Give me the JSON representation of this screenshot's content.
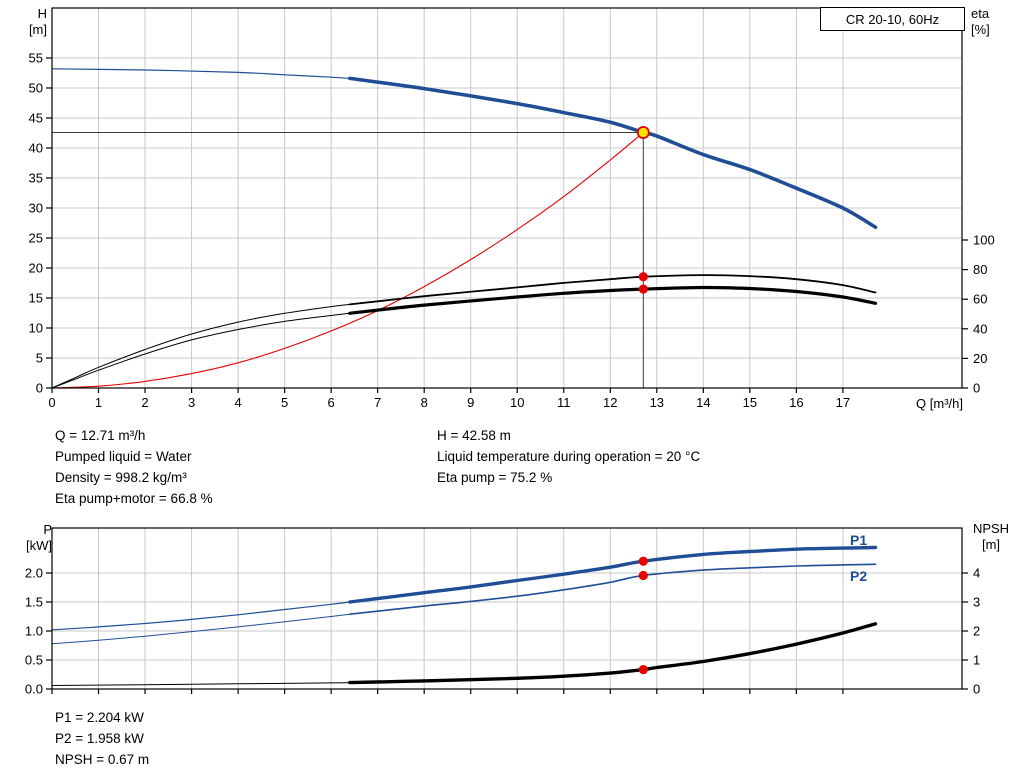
{
  "colors": {
    "blue": "#1f4e96",
    "black": "#000000",
    "red": "#e60000",
    "grid": "#c8c8c8",
    "axis": "#000000",
    "duty_line": "#3a3a3a",
    "duty_fill": "#ffe400",
    "dot_red": "#e60000"
  },
  "chart_data": [
    {
      "type": "line",
      "title": "CR 20-10, 60Hz",
      "xlabel": "Q [m³/h]",
      "x_ticks": [
        0,
        1,
        2,
        3,
        4,
        5,
        6,
        7,
        8,
        9,
        10,
        11,
        12,
        13,
        14,
        15,
        16,
        17
      ],
      "xlim": [
        0,
        19.56
      ],
      "show_x_labels": true,
      "left_axis": {
        "label_lines": [
          "H",
          "[m]"
        ],
        "ticks": [
          0,
          5,
          10,
          15,
          20,
          25,
          30,
          35,
          40,
          45,
          50,
          55
        ],
        "lim": [
          0,
          63.33
        ],
        "decimals": 0
      },
      "right_axis": {
        "label_lines": [
          "eta",
          "[%]"
        ],
        "ticks": [
          0,
          20,
          40,
          60,
          80,
          100
        ],
        "lim": [
          0,
          256.76
        ],
        "decimals": 0
      },
      "series": [
        {
          "name": "head-curve",
          "label": "H",
          "color": "blue",
          "axis": "left",
          "thin_until": 6.4,
          "width_thin": 1.2,
          "width_thick": 3.6,
          "points": [
            [
              0,
              53.2
            ],
            [
              2,
              53.0
            ],
            [
              4,
              52.6
            ],
            [
              5,
              52.2
            ],
            [
              6,
              51.8
            ],
            [
              6.4,
              51.6
            ],
            [
              8,
              49.9
            ],
            [
              10,
              47.4
            ],
            [
              11,
              45.9
            ],
            [
              12,
              44.3
            ],
            [
              12.71,
              42.58
            ],
            [
              13,
              42.0
            ],
            [
              14,
              38.9
            ],
            [
              15,
              36.4
            ],
            [
              16,
              33.3
            ],
            [
              17,
              30.0
            ],
            [
              17.7,
              26.8
            ]
          ]
        },
        {
          "name": "system-curve",
          "label": "system",
          "color": "red",
          "axis": "left",
          "width": 1.1,
          "points": [
            [
              0,
              0
            ],
            [
              1,
              0.3
            ],
            [
              2,
              1.1
            ],
            [
              3,
              2.4
            ],
            [
              4,
              4.2
            ],
            [
              5,
              6.6
            ],
            [
              6,
              9.5
            ],
            [
              7,
              12.9
            ],
            [
              8,
              16.9
            ],
            [
              9,
              21.4
            ],
            [
              10,
              26.4
            ],
            [
              11,
              31.9
            ],
            [
              12,
              38.0
            ],
            [
              12.71,
              42.58
            ]
          ]
        },
        {
          "name": "eta-pump-curve",
          "label": "eta pump",
          "color": "black",
          "axis": "right",
          "thin_until": 6.4,
          "width_thin": 1,
          "width_thick": 1.8,
          "points": [
            [
              0,
              0
            ],
            [
              0.5,
              7
            ],
            [
              1,
              14
            ],
            [
              2,
              26
            ],
            [
              3,
              36.5
            ],
            [
              4,
              44.5
            ],
            [
              5,
              50.5
            ],
            [
              6,
              55
            ],
            [
              6.4,
              56.5
            ],
            [
              8,
              62
            ],
            [
              10,
              68
            ],
            [
              11,
              71
            ],
            [
              12,
              73.5
            ],
            [
              12.71,
              75.2
            ],
            [
              14,
              76.3
            ],
            [
              15,
              75.6
            ],
            [
              16,
              73.5
            ],
            [
              17,
              69.5
            ],
            [
              17.7,
              64.5
            ]
          ]
        },
        {
          "name": "eta-pump-motor-curve",
          "label": "eta pump+motor",
          "color": "black",
          "axis": "right",
          "thin_until": 6.4,
          "width_thin": 1,
          "width_thick": 3.2,
          "points": [
            [
              0,
              0
            ],
            [
              0.5,
              6
            ],
            [
              1,
              12
            ],
            [
              2,
              23
            ],
            [
              3,
              32.5
            ],
            [
              4,
              39.5
            ],
            [
              5,
              45
            ],
            [
              6,
              49
            ],
            [
              6.4,
              50.5
            ],
            [
              8,
              56
            ],
            [
              10,
              61.5
            ],
            [
              11,
              64
            ],
            [
              12,
              65.9
            ],
            [
              12.71,
              66.8
            ],
            [
              14,
              67.9
            ],
            [
              15,
              67.2
            ],
            [
              16,
              65.2
            ],
            [
              17,
              61.5
            ],
            [
              17.7,
              57.2
            ]
          ]
        }
      ],
      "duty_lines": {
        "q": 12.71,
        "h": 42.58
      },
      "duty_point": {
        "q": 12.71,
        "h": 42.58
      },
      "marker_points": [
        {
          "q": 12.71,
          "value": 75.2,
          "axis": "right"
        },
        {
          "q": 12.71,
          "value": 66.8,
          "axis": "right"
        }
      ]
    },
    {
      "type": "line",
      "title": "",
      "xlabel": "",
      "x_ticks": [
        0,
        1,
        2,
        3,
        4,
        5,
        6,
        7,
        8,
        9,
        10,
        11,
        12,
        13,
        14,
        15,
        16,
        17
      ],
      "xlim": [
        0,
        19.56
      ],
      "show_x_labels": false,
      "left_axis": {
        "label_lines": [
          "P",
          "[kW]"
        ],
        "ticks": [
          0.0,
          0.5,
          1.0,
          1.5,
          2.0
        ],
        "lim": [
          0,
          2.776
        ],
        "decimals": 1
      },
      "right_axis": {
        "label_lines": [
          "NPSH",
          "[m]"
        ],
        "ticks": [
          0,
          1,
          2,
          3,
          4
        ],
        "lim": [
          0,
          5.552
        ],
        "decimals": 0
      },
      "series": [
        {
          "name": "p1-curve",
          "label": "P1",
          "color": "blue",
          "axis": "left",
          "thin_until": 6.4,
          "width_thin": 1.2,
          "width_thick": 3.4,
          "points": [
            [
              0,
              1.02
            ],
            [
              1,
              1.07
            ],
            [
              2,
              1.13
            ],
            [
              3,
              1.2
            ],
            [
              4,
              1.28
            ],
            [
              5,
              1.37
            ],
            [
              6,
              1.46
            ],
            [
              6.4,
              1.5
            ],
            [
              8,
              1.66
            ],
            [
              9,
              1.76
            ],
            [
              10,
              1.87
            ],
            [
              11,
              1.98
            ],
            [
              12,
              2.1
            ],
            [
              12.71,
              2.204
            ],
            [
              14,
              2.32
            ],
            [
              15,
              2.37
            ],
            [
              16,
              2.41
            ],
            [
              17,
              2.43
            ],
            [
              17.7,
              2.44
            ]
          ]
        },
        {
          "name": "p2-curve",
          "label": "P2",
          "color": "blue",
          "axis": "left",
          "thin_until": 6.4,
          "width_thin": 1,
          "width_thick": 1.6,
          "points": [
            [
              0,
              0.78
            ],
            [
              1,
              0.84
            ],
            [
              2,
              0.91
            ],
            [
              3,
              0.99
            ],
            [
              4,
              1.07
            ],
            [
              5,
              1.16
            ],
            [
              6,
              1.25
            ],
            [
              6.4,
              1.29
            ],
            [
              8,
              1.43
            ],
            [
              9,
              1.51
            ],
            [
              10,
              1.6
            ],
            [
              11,
              1.71
            ],
            [
              12,
              1.84
            ],
            [
              12.71,
              1.958
            ],
            [
              14,
              2.05
            ],
            [
              15,
              2.09
            ],
            [
              16,
              2.12
            ],
            [
              17,
              2.14
            ],
            [
              17.7,
              2.15
            ]
          ]
        },
        {
          "name": "npsh-curve",
          "label": "NPSH",
          "color": "black",
          "axis": "right",
          "thin_until": 6.4,
          "width_thin": 1,
          "width_thick": 3.4,
          "points": [
            [
              0,
              0.12
            ],
            [
              2,
              0.15
            ],
            [
              4,
              0.18
            ],
            [
              6,
              0.21
            ],
            [
              6.4,
              0.22
            ],
            [
              8,
              0.28
            ],
            [
              10,
              0.37
            ],
            [
              11,
              0.44
            ],
            [
              12,
              0.55
            ],
            [
              12.71,
              0.67
            ],
            [
              13,
              0.74
            ],
            [
              14,
              0.95
            ],
            [
              15,
              1.22
            ],
            [
              16,
              1.55
            ],
            [
              17,
              1.93
            ],
            [
              17.7,
              2.25
            ]
          ]
        }
      ],
      "marker_points": [
        {
          "q": 12.71,
          "value": 2.204,
          "axis": "left"
        },
        {
          "q": 12.71,
          "value": 1.958,
          "axis": "left"
        },
        {
          "q": 12.71,
          "value": 0.67,
          "axis": "right"
        }
      ]
    }
  ],
  "info_top": {
    "left": [
      "Q = 12.71 m³/h",
      "Pumped liquid = Water",
      "Density = 998.2 kg/m³",
      "Eta pump+motor = 66.8 %"
    ],
    "right": [
      "H = 42.58 m",
      "Liquid temperature during operation = 20 °C",
      "Eta pump = 75.2 %"
    ]
  },
  "info_bottom": [
    "P1 = 2.204 kW",
    "P2 = 1.958 kW",
    "NPSH = 0.67 m"
  ]
}
